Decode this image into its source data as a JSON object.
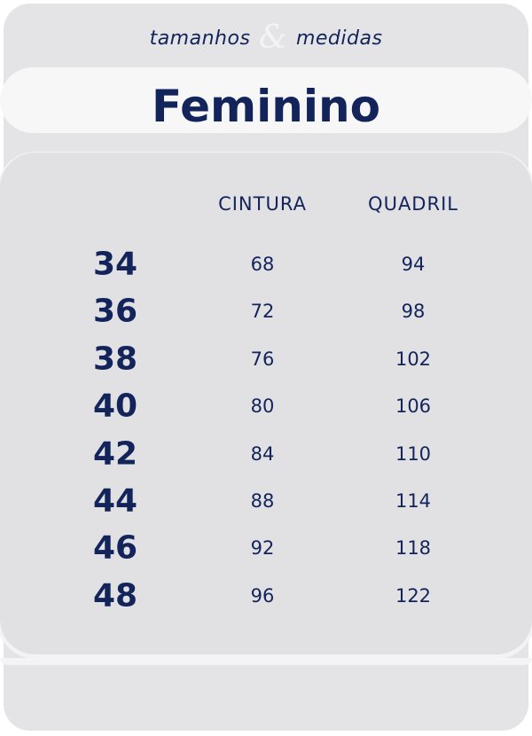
{
  "header": {
    "left": "tamanhos",
    "amp": "&",
    "right": "medidas",
    "title": "Feminino"
  },
  "table": {
    "columns": [
      "CINTURA",
      "QUADRIL"
    ],
    "rows": [
      [
        "34",
        "68",
        "94"
      ],
      [
        "36",
        "72",
        "98"
      ],
      [
        "38",
        "76",
        "102"
      ],
      [
        "40",
        "80",
        "106"
      ],
      [
        "42",
        "84",
        "110"
      ],
      [
        "44",
        "88",
        "114"
      ],
      [
        "46",
        "92",
        "118"
      ],
      [
        "48",
        "96",
        "122"
      ]
    ]
  }
}
